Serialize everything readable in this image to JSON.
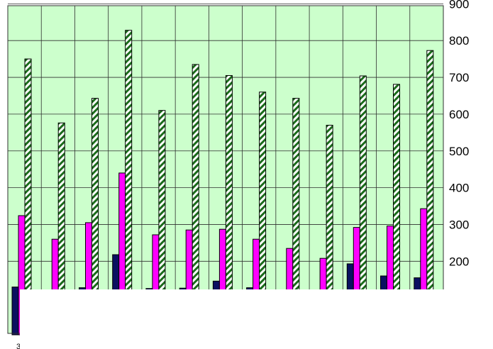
{
  "chart_data": {
    "type": "bar",
    "categories": [
      "",
      "",
      "",
      "",
      "",
      "",
      "",
      "",
      "",
      "",
      "",
      "",
      ""
    ],
    "series": [
      {
        "values": [
          130,
          50,
          128,
          218,
          126,
          127,
          146,
          128,
          20,
          20,
          193,
          160,
          155
        ]
      },
      {
        "values": [
          324,
          260,
          305,
          440,
          272,
          285,
          287,
          260,
          235,
          208,
          292,
          296,
          343
        ]
      },
      {
        "values": [
          750,
          576,
          643,
          828,
          610,
          735,
          705,
          660,
          643,
          570,
          704,
          681,
          773
        ]
      }
    ],
    "ylim": [
      0,
      900
    ],
    "y_ticks": [
      "200",
      "300",
      "400",
      "500",
      "600",
      "700",
      "800",
      "900"
    ],
    "y_axis_side": "right",
    "corner_label": "3",
    "grid": true,
    "colors": {
      "plot_background": "#ccffcc",
      "grid": "#2f2f2f",
      "series_1": "#0a1060",
      "series_2": "#ff00ff",
      "series_3_stripe_a": "#1a6b1a",
      "series_3_stripe_b": "#ffffff"
    }
  }
}
